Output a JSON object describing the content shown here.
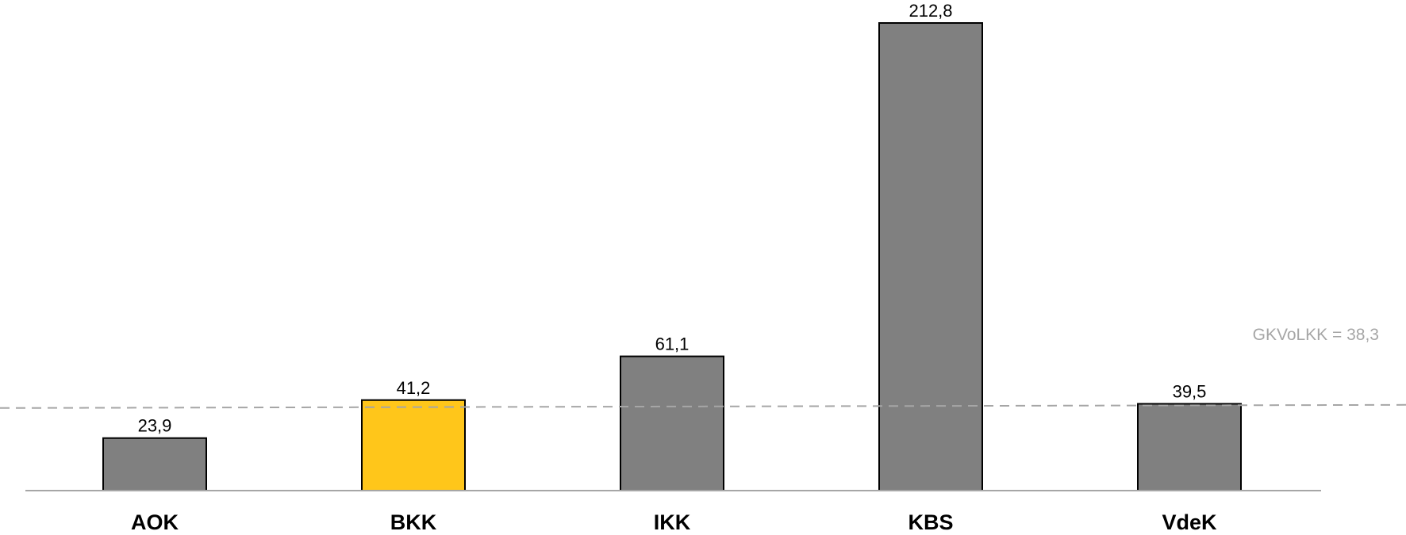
{
  "chart_data": {
    "type": "bar",
    "categories": [
      "AOK",
      "BKK",
      "IKK",
      "KBS",
      "VdeK"
    ],
    "values": [
      23.9,
      41.2,
      61.1,
      212.8,
      39.5
    ],
    "value_labels": [
      "23,9",
      "41,2",
      "61,1",
      "212,8",
      "39,5"
    ],
    "highlight_category": "BKK",
    "colors": {
      "default_bar": "#808080",
      "highlight_bar": "#ffc61a",
      "bar_outline": "#000000",
      "reference_line": "#a6a6a6",
      "axis": "#a6a6a6"
    },
    "reference_line": {
      "value": 38.3,
      "label": "GKVoLKK =  38,3",
      "style": "dashed"
    },
    "title": "",
    "xlabel": "",
    "ylabel": "",
    "ylim": [
      0,
      212.8
    ],
    "grid": false,
    "legend": "none"
  }
}
